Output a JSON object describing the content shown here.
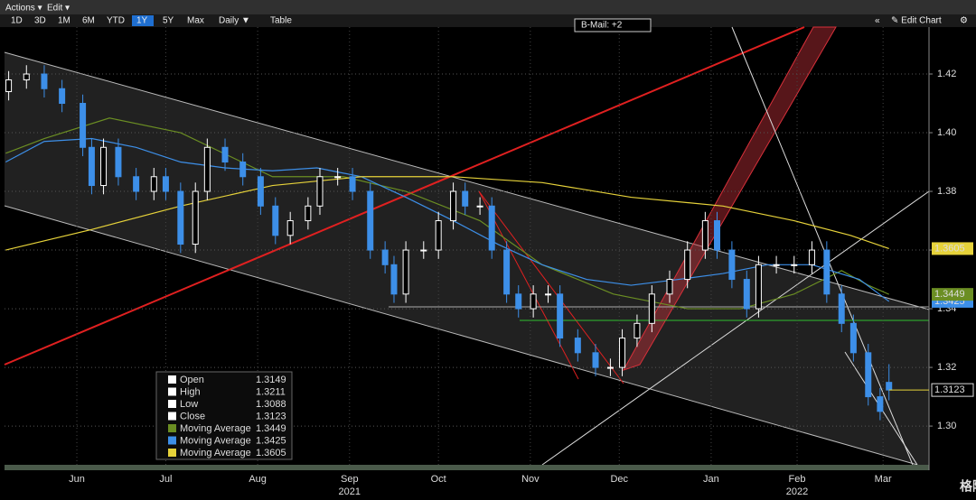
{
  "toolbar": {
    "menu": [
      "Actions ▾",
      "Edit ▾"
    ],
    "ranges": [
      "1D",
      "3D",
      "1M",
      "6M",
      "YTD",
      "1Y",
      "5Y",
      "Max",
      "Daily ▼",
      "Table"
    ],
    "active_range": "1Y",
    "bmail": "B-Mail: +2",
    "right": [
      "«",
      "✎ Edit Chart",
      "⚙"
    ]
  },
  "watermark": "格隆汇",
  "chart_data": {
    "type": "candlestick",
    "candles": {
      "x": [
        -8,
        -2,
        4,
        10,
        17,
        20,
        24,
        29,
        35,
        41,
        45,
        50,
        55,
        59,
        65,
        71,
        77,
        82,
        87,
        93,
        97,
        103,
        108,
        114,
        119,
        122,
        126,
        132,
        137,
        142,
        146,
        151,
        155,
        160,
        164,
        169,
        174,
        178,
        184,
        190,
        195,
        199,
        204,
        209,
        215,
        221,
        227,
        231,
        236,
        241,
        245,
        251,
        257,
        263,
        268,
        273,
        277,
        282,
        286,
        289
      ],
      "open": [
        1.414,
        1.418,
        1.42,
        1.415,
        1.41,
        1.395,
        1.382,
        1.395,
        1.385,
        1.38,
        1.385,
        1.38,
        1.362,
        1.38,
        1.395,
        1.39,
        1.385,
        1.375,
        1.365,
        1.37,
        1.375,
        1.385,
        1.385,
        1.38,
        1.36,
        1.355,
        1.345,
        1.36,
        1.36,
        1.37,
        1.38,
        1.375,
        1.375,
        1.36,
        1.345,
        1.34,
        1.345,
        1.345,
        1.33,
        1.325,
        1.32,
        1.32,
        1.33,
        1.335,
        1.345,
        1.35,
        1.36,
        1.37,
        1.36,
        1.35,
        1.34,
        1.355,
        1.355,
        1.355,
        1.36,
        1.345,
        1.335,
        1.325,
        1.31,
        1.3149
      ],
      "high": [
        1.421,
        1.423,
        1.423,
        1.418,
        1.413,
        1.398,
        1.398,
        1.398,
        1.388,
        1.388,
        1.388,
        1.383,
        1.383,
        1.398,
        1.398,
        1.393,
        1.388,
        1.378,
        1.373,
        1.378,
        1.388,
        1.388,
        1.388,
        1.383,
        1.363,
        1.358,
        1.363,
        1.363,
        1.373,
        1.383,
        1.383,
        1.378,
        1.378,
        1.363,
        1.348,
        1.348,
        1.348,
        1.348,
        1.333,
        1.328,
        1.323,
        1.333,
        1.338,
        1.348,
        1.353,
        1.363,
        1.373,
        1.373,
        1.363,
        1.353,
        1.358,
        1.358,
        1.358,
        1.363,
        1.363,
        1.348,
        1.338,
        1.328,
        1.313,
        1.3211
      ],
      "low": [
        1.411,
        1.415,
        1.412,
        1.407,
        1.392,
        1.379,
        1.379,
        1.382,
        1.377,
        1.377,
        1.377,
        1.359,
        1.359,
        1.377,
        1.387,
        1.382,
        1.372,
        1.362,
        1.362,
        1.367,
        1.372,
        1.382,
        1.377,
        1.357,
        1.352,
        1.342,
        1.342,
        1.357,
        1.357,
        1.367,
        1.372,
        1.372,
        1.357,
        1.342,
        1.337,
        1.337,
        1.342,
        1.327,
        1.322,
        1.317,
        1.317,
        1.317,
        1.327,
        1.332,
        1.342,
        1.347,
        1.357,
        1.357,
        1.347,
        1.337,
        1.337,
        1.352,
        1.352,
        1.352,
        1.342,
        1.332,
        1.322,
        1.307,
        1.302,
        1.3088
      ],
      "close": [
        1.418,
        1.42,
        1.415,
        1.41,
        1.395,
        1.382,
        1.395,
        1.385,
        1.38,
        1.385,
        1.38,
        1.362,
        1.38,
        1.395,
        1.39,
        1.385,
        1.375,
        1.365,
        1.37,
        1.375,
        1.385,
        1.385,
        1.38,
        1.36,
        1.355,
        1.345,
        1.36,
        1.36,
        1.37,
        1.38,
        1.375,
        1.375,
        1.36,
        1.345,
        1.34,
        1.345,
        1.345,
        1.33,
        1.325,
        1.32,
        1.32,
        1.33,
        1.335,
        1.345,
        1.35,
        1.36,
        1.37,
        1.36,
        1.35,
        1.34,
        1.355,
        1.355,
        1.355,
        1.36,
        1.345,
        1.335,
        1.325,
        1.31,
        1.305,
        1.3123
      ],
      "up_color": "#ffffff",
      "down_color": "#3d8fe8"
    },
    "series": [
      {
        "name": "Moving Average",
        "color": "#6b8e23",
        "x": [
          -9,
          4,
          26,
          50,
          81,
          105,
          126,
          151,
          172,
          196,
          221,
          239,
          257,
          273,
          282,
          289
        ],
        "values": [
          1.393,
          1.398,
          1.405,
          1.4,
          1.385,
          1.385,
          1.38,
          1.37,
          1.355,
          1.345,
          1.34,
          1.34,
          1.345,
          1.353,
          1.348,
          1.3449
        ]
      },
      {
        "name": "Moving Average",
        "color": "#3d8fe8",
        "x": [
          -9,
          4,
          20,
          35,
          50,
          65,
          81,
          96,
          111,
          126,
          142,
          157,
          172,
          187,
          202,
          218,
          233,
          248,
          263,
          279,
          289
        ],
        "values": [
          1.39,
          1.397,
          1.398,
          1.395,
          1.39,
          1.388,
          1.387,
          1.388,
          1.385,
          1.378,
          1.37,
          1.362,
          1.355,
          1.35,
          1.348,
          1.35,
          1.352,
          1.355,
          1.355,
          1.35,
          1.3425
        ]
      },
      {
        "name": "Moving Average",
        "color": "#e6d23a",
        "x": [
          -9,
          20,
          50,
          81,
          111,
          142,
          172,
          202,
          233,
          257,
          276,
          289
        ],
        "values": [
          1.36,
          1.367,
          1.375,
          1.382,
          1.385,
          1.385,
          1.383,
          1.378,
          1.375,
          1.37,
          1.365,
          1.3605
        ]
      }
    ],
    "legend_labels": [
      "Open",
      "High",
      "Low",
      "Close"
    ],
    "xlim": [
      -9.4,
      302.5
    ],
    "xticks": [
      {
        "value": 15,
        "label": "Jun"
      },
      {
        "value": 45,
        "label": "Jul"
      },
      {
        "value": 76,
        "label": "Aug"
      },
      {
        "value": 107,
        "label": "Sep"
      },
      {
        "value": 137,
        "label": "Oct"
      },
      {
        "value": 168,
        "label": "Nov"
      },
      {
        "value": 198,
        "label": "Dec"
      },
      {
        "value": 229,
        "label": "Jan"
      },
      {
        "value": 258,
        "label": "Feb"
      },
      {
        "value": 287,
        "label": "Mar"
      }
    ],
    "years": [
      {
        "value": 107,
        "label": "2021"
      },
      {
        "value": 258,
        "label": "2022"
      }
    ],
    "ylim": [
      1.2868,
      1.436
    ],
    "yticks": [
      {
        "value": 1.3,
        "label": "1.30"
      },
      1.32,
      1.34,
      1.36,
      1.38,
      {
        "value": 1.4,
        "label": "1.40"
      },
      1.42
    ],
    "grid": true
  }
}
